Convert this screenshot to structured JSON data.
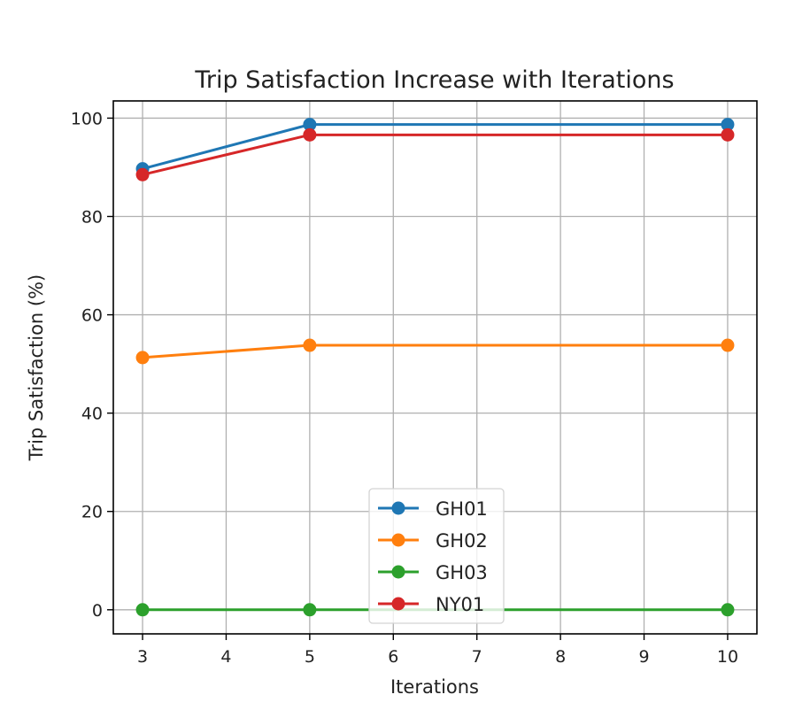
{
  "chart_data": {
    "type": "line",
    "title": "Trip Satisfaction Increase with Iterations",
    "xlabel": "Iterations",
    "ylabel": "Trip Satisfaction (%)",
    "x": [
      3,
      5,
      10
    ],
    "xlim": [
      2.65,
      10.35
    ],
    "ylim": [
      -4.9,
      103.5
    ],
    "xticks": [
      3,
      4,
      5,
      6,
      7,
      8,
      9,
      10
    ],
    "yticks": [
      0,
      20,
      40,
      60,
      80,
      100
    ],
    "grid": true,
    "legend_position": "lower-center",
    "series": [
      {
        "name": "GH01",
        "values": [
          89.7,
          98.7,
          98.7
        ],
        "color": "#1f77b4"
      },
      {
        "name": "GH02",
        "values": [
          51.3,
          53.8,
          53.8
        ],
        "color": "#ff7f0e"
      },
      {
        "name": "GH03",
        "values": [
          0,
          0,
          0
        ],
        "color": "#2ca02c"
      },
      {
        "name": "NY01",
        "values": [
          88.5,
          96.6,
          96.6
        ],
        "color": "#d62728"
      }
    ]
  }
}
